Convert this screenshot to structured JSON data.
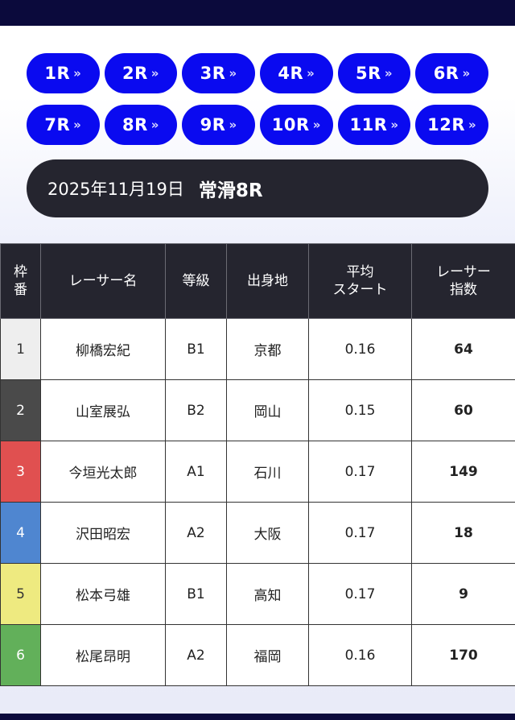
{
  "race_buttons": [
    {
      "label": "1R"
    },
    {
      "label": "2R"
    },
    {
      "label": "3R"
    },
    {
      "label": "4R"
    },
    {
      "label": "5R"
    },
    {
      "label": "6R"
    },
    {
      "label": "7R"
    },
    {
      "label": "8R"
    },
    {
      "label": "9R"
    },
    {
      "label": "10R"
    },
    {
      "label": "11R"
    },
    {
      "label": "12R"
    }
  ],
  "header": {
    "date": "2025年11月19日",
    "race": "常滑8R"
  },
  "table": {
    "columns": {
      "frame": [
        "枠",
        "番"
      ],
      "name": "レーサー名",
      "grade": "等級",
      "hometown": "出身地",
      "avg_start": [
        "平均",
        "スタート"
      ],
      "index": [
        "レーサー",
        "指数"
      ]
    },
    "rows": [
      {
        "frame": "1",
        "name": "柳橋宏紀",
        "grade": "B1",
        "hometown": "京都",
        "avg_start": "0.16",
        "index": "64",
        "frame_color": "#eeeeee",
        "frame_text": "#333333"
      },
      {
        "frame": "2",
        "name": "山室展弘",
        "grade": "B2",
        "hometown": "岡山",
        "avg_start": "0.15",
        "index": "60",
        "frame_color": "#4a4a4a",
        "frame_text": "#ffffff"
      },
      {
        "frame": "3",
        "name": "今垣光太郎",
        "grade": "A1",
        "hometown": "石川",
        "avg_start": "0.17",
        "index": "149",
        "frame_color": "#e05050",
        "frame_text": "#ffffff"
      },
      {
        "frame": "4",
        "name": "沢田昭宏",
        "grade": "A2",
        "hometown": "大阪",
        "avg_start": "0.17",
        "index": "18",
        "frame_color": "#4f86d0",
        "frame_text": "#ffffff"
      },
      {
        "frame": "5",
        "name": "松本弓雄",
        "grade": "B1",
        "hometown": "高知",
        "avg_start": "0.17",
        "index": "9",
        "frame_color": "#eeea80",
        "frame_text": "#333333"
      },
      {
        "frame": "6",
        "name": "松尾昂明",
        "grade": "A2",
        "hometown": "福岡",
        "avg_start": "0.16",
        "index": "170",
        "frame_color": "#62b05a",
        "frame_text": "#ffffff"
      }
    ]
  },
  "colors": {
    "race_button": "#0a0af0",
    "dark": "#25252f",
    "navy": "#0b0a3c"
  }
}
